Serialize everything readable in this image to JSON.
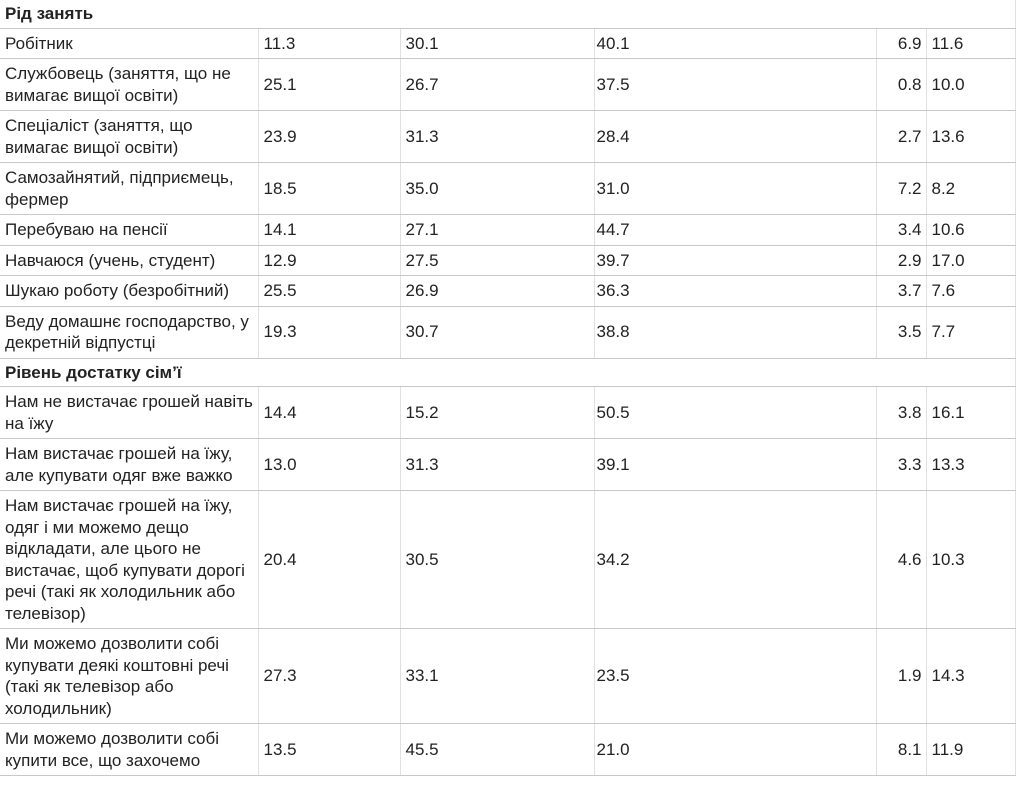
{
  "table": {
    "sections": [
      {
        "title": "Рід занять",
        "rows": [
          {
            "label": "Робітник",
            "values": [
              "11.3",
              "30.1",
              "40.1",
              "6.9",
              "11.6"
            ]
          },
          {
            "label": "Службовець (заняття, що не вимагає вищої освіти)",
            "values": [
              "25.1",
              "26.7",
              "37.5",
              "0.8",
              "10.0"
            ]
          },
          {
            "label": "Спеціаліст (заняття, що вимагає вищої освіти)",
            "values": [
              "23.9",
              "31.3",
              "28.4",
              "2.7",
              "13.6"
            ]
          },
          {
            "label": "Самозайнятий, підприємець, фермер",
            "values": [
              "18.5",
              "35.0",
              "31.0",
              "7.2",
              "8.2"
            ]
          },
          {
            "label": "Перебуваю на пенсії",
            "values": [
              "14.1",
              "27.1",
              "44.7",
              "3.4",
              "10.6"
            ]
          },
          {
            "label": "Навчаюся (учень, студент)",
            "values": [
              "12.9",
              "27.5",
              "39.7",
              "2.9",
              "17.0"
            ]
          },
          {
            "label": "Шукаю роботу (безробітний)",
            "values": [
              "25.5",
              "26.9",
              "36.3",
              "3.7",
              "7.6"
            ]
          },
          {
            "label": "Веду домашнє господарство, у декретній відпустці",
            "values": [
              "19.3",
              "30.7",
              "38.8",
              "3.5",
              "7.7"
            ]
          }
        ]
      },
      {
        "title": "Рівень достатку сім’ї",
        "rows": [
          {
            "label": "Нам не вистачає грошей навіть на їжу",
            "values": [
              "14.4",
              "15.2",
              "50.5",
              "3.8",
              "16.1"
            ]
          },
          {
            "label": "Нам вистачає грошей на їжу, але купувати одяг вже важко",
            "values": [
              "13.0",
              "31.3",
              "39.1",
              "3.3",
              "13.3"
            ]
          },
          {
            "label": "Нам вистачає грошей на їжу, одяг і ми можемо дещо відкладати, але цього не вистачає, щоб купувати дорогі речі (такі як холодильник або телевізор)",
            "values": [
              "20.4",
              "30.5",
              "34.2",
              "4.6",
              "10.3"
            ]
          },
          {
            "label": "Ми можемо дозволити собі купувати деякі коштовні речі (такі як телевізор або холодильник)",
            "values": [
              "27.3",
              "33.1",
              "23.5",
              "1.9",
              "14.3"
            ]
          },
          {
            "label": "Ми можемо дозволити собі купити все, що захочемо",
            "values": [
              "13.5",
              "45.5",
              "21.0",
              "8.1",
              "11.9"
            ]
          }
        ]
      }
    ]
  }
}
